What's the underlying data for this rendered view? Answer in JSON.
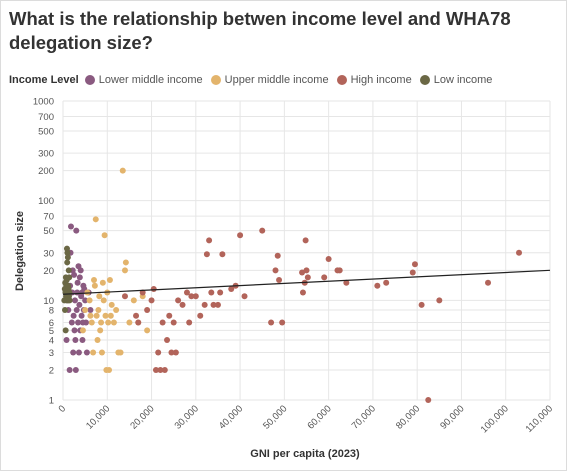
{
  "title": "What is the relationship betwen income level and WHA78 delegation size?",
  "legend": {
    "title": "Income Level",
    "entries": [
      {
        "label": "Lower middle income",
        "color": "#8a5a80"
      },
      {
        "label": "Upper middle income",
        "color": "#e3b46c"
      },
      {
        "label": "High income",
        "color": "#b2645a"
      },
      {
        "label": "Low income",
        "color": "#6b6845"
      }
    ]
  },
  "chart_data": {
    "type": "scatter",
    "xlabel": "GNI per capita (2023)",
    "ylabel": "Delegation size",
    "xlim": [
      0,
      110000
    ],
    "ylim": [
      1,
      1000
    ],
    "yscale": "log",
    "grid": true,
    "legend_position": "top",
    "x_ticks": [
      0,
      10000,
      20000,
      30000,
      40000,
      50000,
      60000,
      70000,
      80000,
      90000,
      100000,
      110000
    ],
    "x_tick_labels": [
      "0",
      "10,000",
      "20,000",
      "30,000",
      "40,000",
      "50,000",
      "60,000",
      "70,000",
      "80,000",
      "90,000",
      "100,000",
      "110,000"
    ],
    "y_ticks": [
      1,
      2,
      3,
      4,
      5,
      6,
      8,
      10,
      20,
      30,
      50,
      70,
      100,
      200,
      300,
      500,
      700,
      1000
    ],
    "y_tick_labels": [
      "1",
      "2",
      "3",
      "4",
      "5",
      "6",
      "8",
      "10",
      "20",
      "30",
      "50",
      "70",
      "100",
      "200",
      "300",
      "500",
      "700",
      "1000"
    ],
    "trendline": {
      "x": [
        0,
        110000
      ],
      "y": [
        11.5,
        20
      ]
    },
    "series": [
      {
        "name": "Lower middle income",
        "color": "#8a5a80",
        "points": [
          [
            800,
            4
          ],
          [
            1000,
            10
          ],
          [
            1200,
            8
          ],
          [
            1500,
            2
          ],
          [
            1600,
            14
          ],
          [
            1700,
            30
          ],
          [
            1800,
            55
          ],
          [
            2000,
            6
          ],
          [
            2100,
            12
          ],
          [
            2200,
            20
          ],
          [
            2300,
            3
          ],
          [
            2400,
            7
          ],
          [
            2500,
            18
          ],
          [
            2600,
            5
          ],
          [
            2700,
            10
          ],
          [
            2800,
            4
          ],
          [
            2900,
            2
          ],
          [
            3000,
            50
          ],
          [
            3100,
            8
          ],
          [
            3200,
            12
          ],
          [
            3300,
            15
          ],
          [
            3400,
            6
          ],
          [
            3500,
            22
          ],
          [
            3600,
            3
          ],
          [
            3700,
            9
          ],
          [
            3800,
            17
          ],
          [
            3900,
            5
          ],
          [
            4000,
            20
          ],
          [
            4100,
            11
          ],
          [
            4200,
            7
          ],
          [
            4300,
            12
          ],
          [
            4400,
            4
          ],
          [
            4500,
            6
          ],
          [
            4600,
            14
          ],
          [
            4700,
            8
          ],
          [
            4800,
            13
          ],
          [
            5000,
            10
          ],
          [
            5200,
            6
          ],
          [
            5400,
            3
          ],
          [
            5800,
            12
          ],
          [
            6200,
            8
          ]
        ]
      },
      {
        "name": "Upper middle income",
        "color": "#e3b46c",
        "points": [
          [
            4500,
            5
          ],
          [
            5000,
            8
          ],
          [
            5500,
            12
          ],
          [
            6000,
            10
          ],
          [
            6200,
            7
          ],
          [
            6500,
            6
          ],
          [
            6800,
            3
          ],
          [
            7000,
            16
          ],
          [
            7200,
            14
          ],
          [
            7400,
            65
          ],
          [
            7600,
            7
          ],
          [
            7800,
            4
          ],
          [
            8000,
            8
          ],
          [
            8200,
            11
          ],
          [
            8400,
            5
          ],
          [
            8600,
            6
          ],
          [
            8800,
            3
          ],
          [
            9000,
            15
          ],
          [
            9200,
            10
          ],
          [
            9400,
            45
          ],
          [
            9600,
            7
          ],
          [
            9800,
            2
          ],
          [
            10000,
            12
          ],
          [
            10200,
            6
          ],
          [
            10400,
            2
          ],
          [
            10600,
            16
          ],
          [
            10800,
            7
          ],
          [
            11000,
            9
          ],
          [
            11500,
            6
          ],
          [
            12000,
            8
          ],
          [
            12500,
            3
          ],
          [
            13000,
            3
          ],
          [
            13500,
            200
          ],
          [
            14000,
            20
          ],
          [
            14200,
            24
          ],
          [
            15000,
            6
          ],
          [
            16000,
            10
          ],
          [
            17000,
            6
          ],
          [
            18000,
            11
          ],
          [
            19000,
            5
          ]
        ]
      },
      {
        "name": "High income",
        "color": "#b2645a",
        "points": [
          [
            14000,
            11
          ],
          [
            16500,
            7
          ],
          [
            17000,
            6
          ],
          [
            18000,
            12
          ],
          [
            19000,
            8
          ],
          [
            20000,
            10
          ],
          [
            20500,
            13
          ],
          [
            21000,
            2
          ],
          [
            21500,
            3
          ],
          [
            22000,
            2
          ],
          [
            22500,
            6
          ],
          [
            23000,
            2
          ],
          [
            23500,
            4
          ],
          [
            24000,
            7
          ],
          [
            24500,
            3
          ],
          [
            25000,
            6
          ],
          [
            25500,
            3
          ],
          [
            26000,
            10
          ],
          [
            27000,
            9
          ],
          [
            28000,
            12
          ],
          [
            28500,
            6
          ],
          [
            29000,
            11
          ],
          [
            30000,
            11
          ],
          [
            31000,
            7
          ],
          [
            32000,
            9
          ],
          [
            32500,
            29
          ],
          [
            33000,
            40
          ],
          [
            33500,
            12
          ],
          [
            34000,
            9
          ],
          [
            35000,
            9
          ],
          [
            35500,
            12
          ],
          [
            36000,
            29
          ],
          [
            38000,
            13
          ],
          [
            39000,
            14
          ],
          [
            40000,
            45
          ],
          [
            41000,
            11
          ],
          [
            45000,
            50
          ],
          [
            47000,
            6
          ],
          [
            48000,
            20
          ],
          [
            48500,
            28
          ],
          [
            48800,
            16
          ],
          [
            49500,
            6
          ],
          [
            54000,
            19
          ],
          [
            54200,
            12
          ],
          [
            54600,
            15
          ],
          [
            54800,
            40
          ],
          [
            55000,
            20
          ],
          [
            55300,
            17
          ],
          [
            59000,
            17
          ],
          [
            60000,
            26
          ],
          [
            62000,
            20
          ],
          [
            62500,
            20
          ],
          [
            64000,
            15
          ],
          [
            71000,
            14
          ],
          [
            73000,
            15
          ],
          [
            79000,
            19
          ],
          [
            79500,
            23
          ],
          [
            81000,
            9
          ],
          [
            82500,
            1
          ],
          [
            85000,
            10
          ],
          [
            96000,
            15
          ],
          [
            103000,
            30
          ]
        ]
      },
      {
        "name": "Low income",
        "color": "#6b6845",
        "points": [
          [
            300,
            10
          ],
          [
            400,
            13
          ],
          [
            450,
            8
          ],
          [
            500,
            15
          ],
          [
            550,
            12
          ],
          [
            600,
            5
          ],
          [
            650,
            17
          ],
          [
            700,
            11
          ],
          [
            750,
            14
          ],
          [
            800,
            10
          ],
          [
            850,
            16
          ],
          [
            900,
            33
          ],
          [
            950,
            24
          ],
          [
            1000,
            30
          ],
          [
            1050,
            12
          ],
          [
            1100,
            27
          ],
          [
            1150,
            14
          ],
          [
            1200,
            10
          ],
          [
            1250,
            13
          ],
          [
            1300,
            20
          ],
          [
            1350,
            11
          ],
          [
            1400,
            17
          ],
          [
            1450,
            12
          ],
          [
            1500,
            10
          ]
        ]
      }
    ]
  }
}
